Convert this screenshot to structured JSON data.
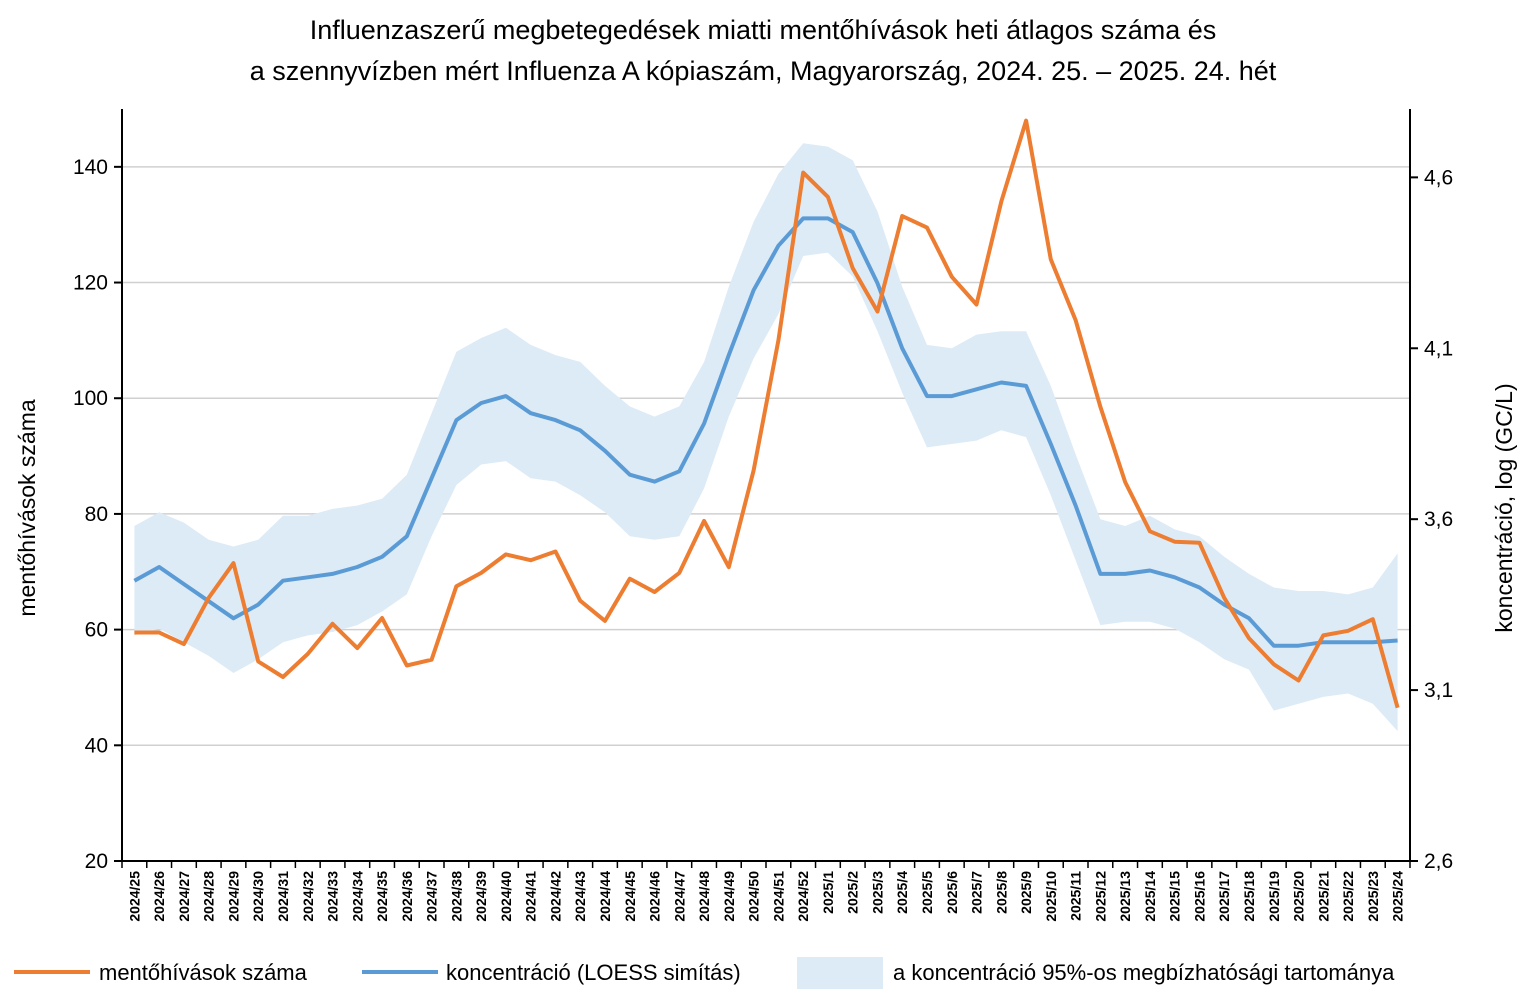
{
  "chart_data": {
    "type": "line",
    "title": "Influenzaszerű megbetegedések miatti mentőhívások heti átlagos száma és",
    "subtitle": "a szennyvízben mért Influenza A kópiaszám, Magyarország, 2024. 25. – 2025. 24. hét",
    "ylabel_left": "mentőhívások száma",
    "ylabel_right": "koncentráció, log (GC/L)",
    "ylim_left": [
      20,
      150
    ],
    "yticks_left": [
      20,
      40,
      60,
      80,
      100,
      120,
      140
    ],
    "ytick_labels_left": [
      "20",
      "40",
      "60",
      "80",
      "100",
      "120",
      "140"
    ],
    "ylim_right": [
      2.6,
      4.8
    ],
    "yticks_right": [
      2.6,
      3.1,
      3.6,
      4.1,
      4.6
    ],
    "ytick_labels_right": [
      "2,6",
      "3,1",
      "3,6",
      "4,1",
      "4,6"
    ],
    "grid": true,
    "legend_position": "bottom",
    "categories": [
      "2024/25",
      "2024/26",
      "2024/27",
      "2024/28",
      "2024/29",
      "2024/30",
      "2024/31",
      "2024/32",
      "2024/33",
      "2024/34",
      "2024/35",
      "2024/36",
      "2024/37",
      "2024/38",
      "2024/39",
      "2024/40",
      "2024/41",
      "2024/42",
      "2024/43",
      "2024/44",
      "2024/45",
      "2024/46",
      "2024/47",
      "2024/48",
      "2024/49",
      "2024/50",
      "2024/51",
      "2024/52",
      "2025/1",
      "2025/2",
      "2025/3",
      "2025/4",
      "2025/5",
      "2025/6",
      "2025/7",
      "2025/8",
      "2025/9",
      "2025/10",
      "2025/11",
      "2025/12",
      "2025/13",
      "2025/14",
      "2025/15",
      "2025/16",
      "2025/17",
      "2025/18",
      "2025/19",
      "2025/20",
      "2025/21",
      "2025/22",
      "2025/23",
      "2025/24"
    ],
    "series": [
      {
        "name": "mentőhívások száma",
        "axis": "left",
        "color": "#ED7D31",
        "values": [
          59.5,
          59.5,
          57.5,
          65.5,
          71.5,
          54.5,
          51.8,
          55.8,
          61,
          56.8,
          62,
          53.8,
          54.8,
          67.5,
          69.8,
          73,
          72,
          73.5,
          65,
          61.5,
          68.8,
          66.5,
          69.8,
          78.8,
          70.8,
          87.5,
          110,
          139,
          134.8,
          122.5,
          115,
          131.5,
          129.5,
          121,
          116.2,
          134,
          148,
          124,
          113.5,
          98.5,
          85.5,
          77,
          75.2,
          75,
          65.5,
          58.5,
          54,
          51.2,
          59,
          59.8,
          61.8,
          46.5
        ]
      },
      {
        "name": "koncentráció (LOESS simítás)",
        "axis": "right",
        "color": "#5B9BD5",
        "values": [
          3.42,
          3.46,
          3.41,
          3.36,
          3.31,
          3.35,
          3.42,
          3.43,
          3.44,
          3.46,
          3.49,
          3.55,
          3.72,
          3.89,
          3.94,
          3.96,
          3.91,
          3.89,
          3.86,
          3.8,
          3.73,
          3.71,
          3.74,
          3.88,
          4.08,
          4.27,
          4.4,
          4.48,
          4.48,
          4.44,
          4.29,
          4.1,
          3.96,
          3.96,
          3.98,
          4.0,
          3.99,
          3.82,
          3.64,
          3.44,
          3.44,
          3.45,
          3.43,
          3.4,
          3.35,
          3.31,
          3.23,
          3.23,
          3.24,
          3.24,
          3.24,
          3.245
        ]
      }
    ],
    "band": {
      "name": "a koncentráció 95%-os megbízhatósági tartománya",
      "color": "#DDEBF7",
      "lower": [
        3.26,
        3.28,
        3.24,
        3.2,
        3.15,
        3.19,
        3.24,
        3.26,
        3.27,
        3.29,
        3.33,
        3.38,
        3.55,
        3.7,
        3.76,
        3.77,
        3.72,
        3.71,
        3.67,
        3.62,
        3.55,
        3.54,
        3.55,
        3.69,
        3.9,
        4.07,
        4.2,
        4.37,
        4.38,
        4.31,
        4.15,
        3.97,
        3.81,
        3.82,
        3.83,
        3.86,
        3.84,
        3.67,
        3.48,
        3.29,
        3.3,
        3.3,
        3.28,
        3.24,
        3.19,
        3.16,
        3.04,
        3.06,
        3.08,
        3.09,
        3.06,
        2.98
      ],
      "upper": [
        3.58,
        3.62,
        3.59,
        3.54,
        3.52,
        3.54,
        3.61,
        3.61,
        3.63,
        3.64,
        3.66,
        3.73,
        3.91,
        4.09,
        4.13,
        4.16,
        4.11,
        4.08,
        4.06,
        3.99,
        3.93,
        3.9,
        3.93,
        4.06,
        4.28,
        4.47,
        4.61,
        4.7,
        4.69,
        4.65,
        4.5,
        4.28,
        4.11,
        4.1,
        4.14,
        4.15,
        4.15,
        3.99,
        3.79,
        3.6,
        3.58,
        3.61,
        3.57,
        3.55,
        3.49,
        3.44,
        3.4,
        3.39,
        3.39,
        3.38,
        3.4,
        3.5
      ]
    }
  }
}
